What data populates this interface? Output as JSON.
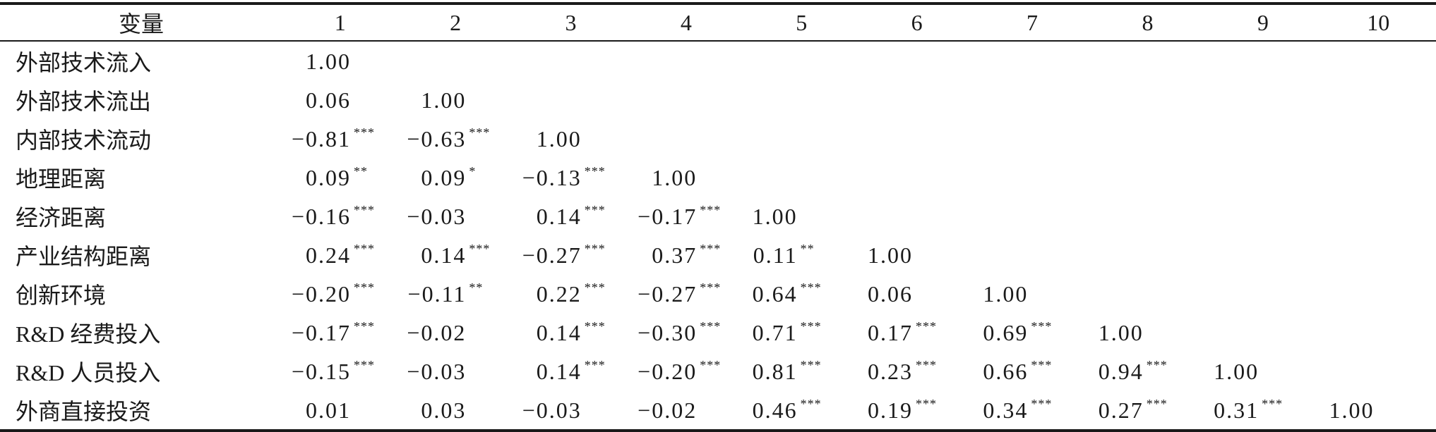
{
  "table": {
    "header": {
      "variable": "变量",
      "columns": [
        "1",
        "2",
        "3",
        "4",
        "5",
        "6",
        "7",
        "8",
        "9",
        "10"
      ]
    },
    "rows": [
      {
        "name": "外部技术流入",
        "cells": [
          {
            "v": "1.00",
            "s": ""
          }
        ]
      },
      {
        "name": "外部技术流出",
        "cells": [
          {
            "v": "0.06",
            "s": ""
          },
          {
            "v": "1.00",
            "s": ""
          }
        ]
      },
      {
        "name": "内部技术流动",
        "cells": [
          {
            "v": "−0.81",
            "s": "***"
          },
          {
            "v": "−0.63",
            "s": "***"
          },
          {
            "v": "1.00",
            "s": ""
          }
        ]
      },
      {
        "name": "地理距离",
        "cells": [
          {
            "v": "0.09",
            "s": "**"
          },
          {
            "v": "0.09",
            "s": "*"
          },
          {
            "v": "−0.13",
            "s": "***"
          },
          {
            "v": "1.00",
            "s": ""
          }
        ]
      },
      {
        "name": "经济距离",
        "cells": [
          {
            "v": "−0.16",
            "s": "***"
          },
          {
            "v": "−0.03",
            "s": ""
          },
          {
            "v": "0.14",
            "s": "***"
          },
          {
            "v": "−0.17",
            "s": "***"
          },
          {
            "v": "1.00",
            "s": ""
          }
        ]
      },
      {
        "name": "产业结构距离",
        "cells": [
          {
            "v": "0.24",
            "s": "***"
          },
          {
            "v": "0.14",
            "s": "***"
          },
          {
            "v": "−0.27",
            "s": "***"
          },
          {
            "v": "0.37",
            "s": "***"
          },
          {
            "v": "0.11",
            "s": "**"
          },
          {
            "v": "1.00",
            "s": ""
          }
        ]
      },
      {
        "name": "创新环境",
        "cells": [
          {
            "v": "−0.20",
            "s": "***"
          },
          {
            "v": "−0.11",
            "s": "**"
          },
          {
            "v": "0.22",
            "s": "***"
          },
          {
            "v": "−0.27",
            "s": "***"
          },
          {
            "v": "0.64",
            "s": "***"
          },
          {
            "v": "0.06",
            "s": ""
          },
          {
            "v": "1.00",
            "s": ""
          }
        ]
      },
      {
        "name": "R&D 经费投入",
        "cells": [
          {
            "v": "−0.17",
            "s": "***"
          },
          {
            "v": "−0.02",
            "s": ""
          },
          {
            "v": "0.14",
            "s": "***"
          },
          {
            "v": "−0.30",
            "s": "***"
          },
          {
            "v": "0.71",
            "s": "***"
          },
          {
            "v": "0.17",
            "s": "***"
          },
          {
            "v": "0.69",
            "s": "***"
          },
          {
            "v": "1.00",
            "s": ""
          }
        ]
      },
      {
        "name": "R&D 人员投入",
        "cells": [
          {
            "v": "−0.15",
            "s": "***"
          },
          {
            "v": "−0.03",
            "s": ""
          },
          {
            "v": "0.14",
            "s": "***"
          },
          {
            "v": "−0.20",
            "s": "***"
          },
          {
            "v": "0.81",
            "s": "***"
          },
          {
            "v": "0.23",
            "s": "***"
          },
          {
            "v": "0.66",
            "s": "***"
          },
          {
            "v": "0.94",
            "s": "***"
          },
          {
            "v": "1.00",
            "s": ""
          }
        ]
      },
      {
        "name": "外商直接投资",
        "cells": [
          {
            "v": "0.01",
            "s": ""
          },
          {
            "v": "0.03",
            "s": ""
          },
          {
            "v": "−0.03",
            "s": ""
          },
          {
            "v": "−0.02",
            "s": ""
          },
          {
            "v": "0.46",
            "s": "***"
          },
          {
            "v": "0.19",
            "s": "***"
          },
          {
            "v": "0.34",
            "s": "***"
          },
          {
            "v": "0.27",
            "s": "***"
          },
          {
            "v": "0.31",
            "s": "***"
          },
          {
            "v": "1.00",
            "s": ""
          }
        ]
      }
    ]
  }
}
